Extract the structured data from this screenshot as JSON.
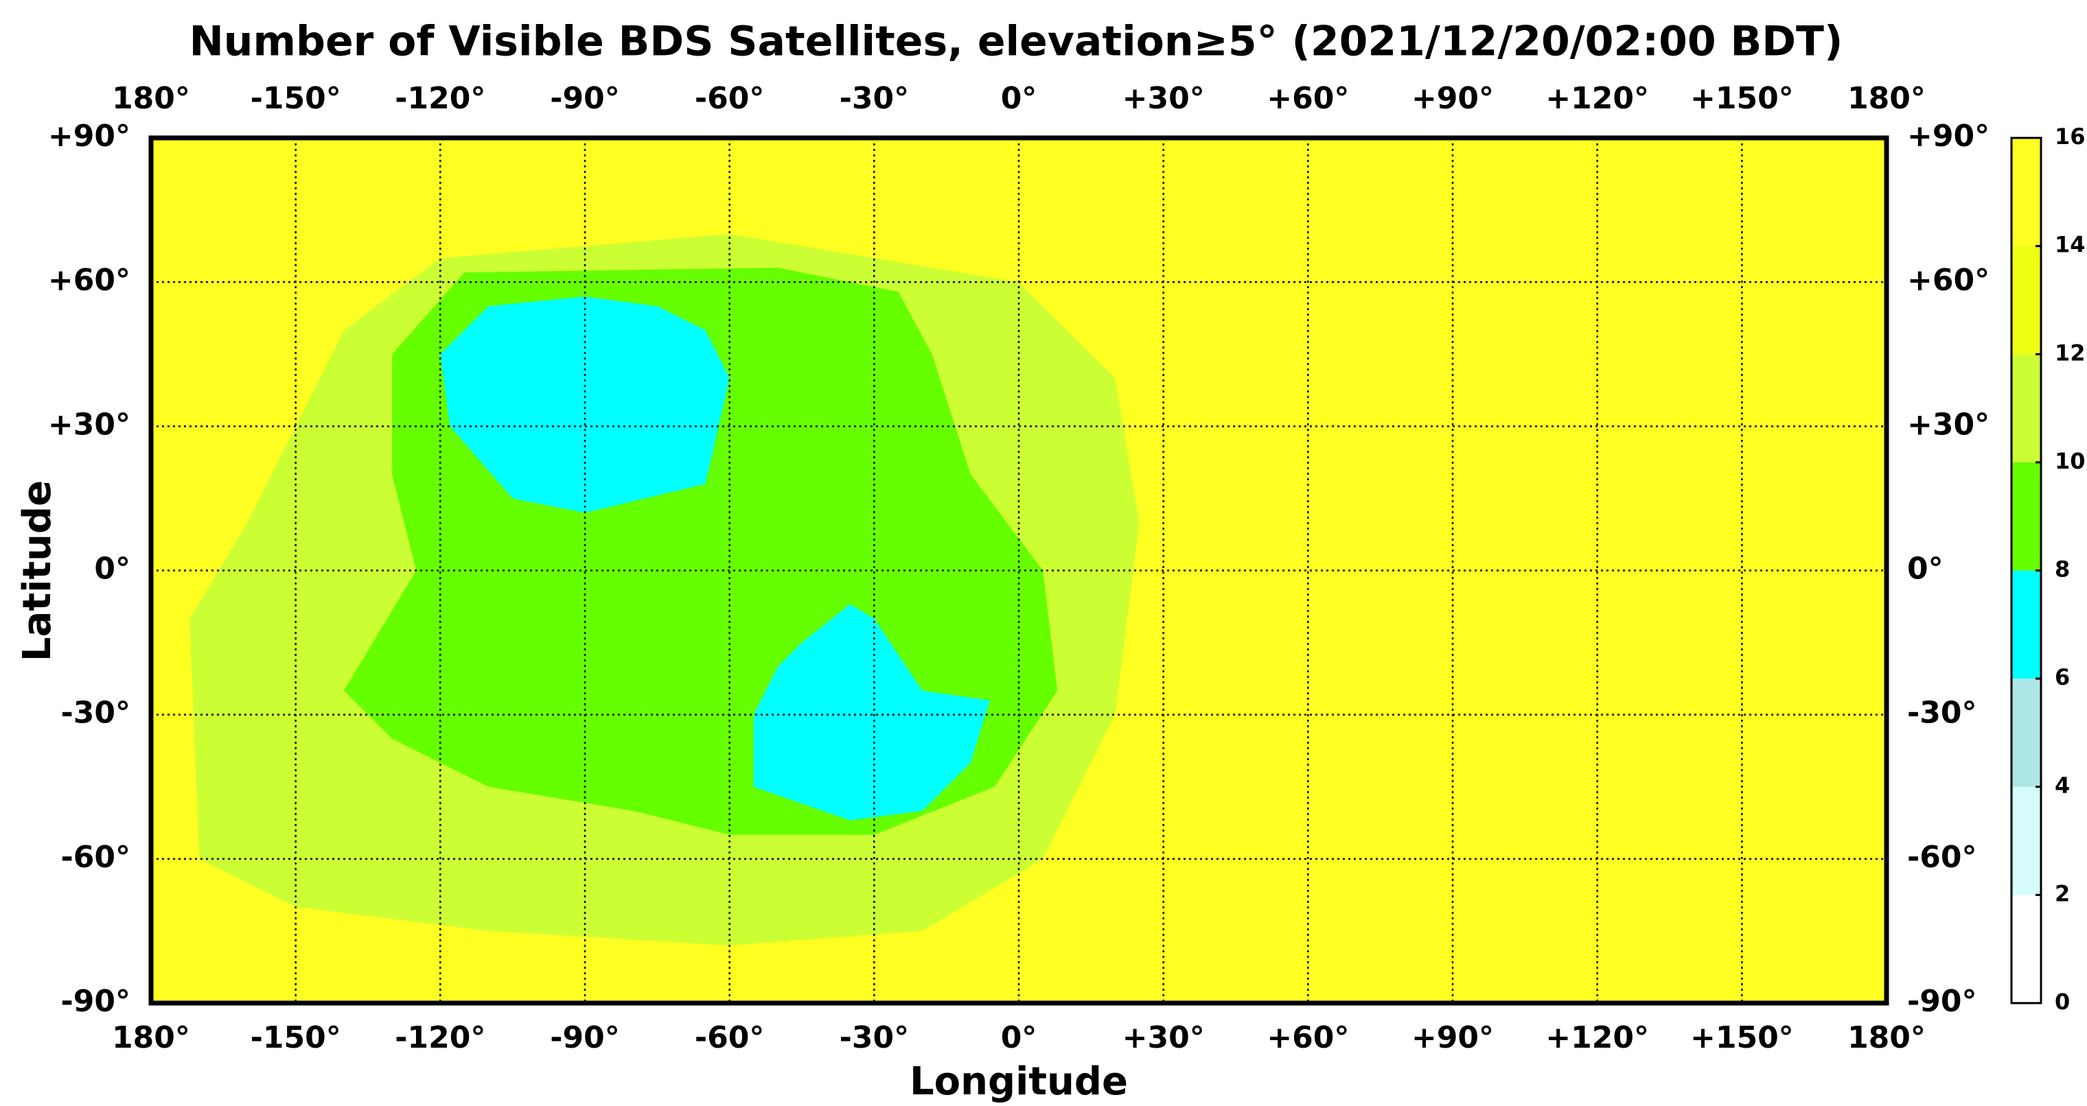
{
  "chart_data": {
    "type": "map",
    "title": "Number of Visible BDS Satellites, elevation≥5° (2021/12/20/02:00 BDT)",
    "x_label": "Longitude",
    "y_label": "Latitude",
    "xlim": [
      -180,
      180
    ],
    "ylim": [
      -90,
      90
    ],
    "xticks": [
      {
        "value": -180,
        "label": "180°"
      },
      {
        "value": -150,
        "label": "-150°"
      },
      {
        "value": -120,
        "label": "-120°"
      },
      {
        "value": -90,
        "label": "-90°"
      },
      {
        "value": -60,
        "label": "-60°"
      },
      {
        "value": -30,
        "label": "-30°"
      },
      {
        "value": 0,
        "label": "0°"
      },
      {
        "value": 30,
        "label": "+30°"
      },
      {
        "value": 60,
        "label": "+60°"
      },
      {
        "value": 90,
        "label": "+90°"
      },
      {
        "value": 120,
        "label": "+120°"
      },
      {
        "value": 150,
        "label": "+150°"
      },
      {
        "value": 180,
        "label": "180°"
      }
    ],
    "yticks": [
      {
        "value": 90,
        "label": "+90°"
      },
      {
        "value": 60,
        "label": "+60°"
      },
      {
        "value": 30,
        "label": "+30°"
      },
      {
        "value": 0,
        "label": "0°"
      },
      {
        "value": -30,
        "label": "-30°"
      },
      {
        "value": -60,
        "label": "-60°"
      },
      {
        "value": -90,
        "label": "-90°"
      }
    ],
    "grid": true,
    "colorbar": {
      "lim": [
        0,
        16
      ],
      "ticks": [
        0,
        2,
        4,
        6,
        8,
        10,
        12,
        14,
        16
      ],
      "colors": [
        "#ffffff",
        "#d6fcfc",
        "#ade6e6",
        "#00ffff",
        "#66ff00",
        "#ccff33",
        "#eeff11",
        "#ffff22"
      ]
    },
    "regions": [
      {
        "value": 15,
        "points": [
          [
            -180,
            -90
          ],
          [
            180,
            -90
          ],
          [
            180,
            90
          ],
          [
            -180,
            90
          ]
        ]
      },
      {
        "value": 11,
        "points": [
          [
            -170,
            -60
          ],
          [
            -172,
            -10
          ],
          [
            -160,
            10
          ],
          [
            -150,
            30
          ],
          [
            -140,
            50
          ],
          [
            -120,
            65
          ],
          [
            -60,
            70
          ],
          [
            -30,
            65
          ],
          [
            0,
            60
          ],
          [
            20,
            40
          ],
          [
            25,
            10
          ],
          [
            20,
            -30
          ],
          [
            5,
            -60
          ],
          [
            -20,
            -75
          ],
          [
            -60,
            -78
          ],
          [
            -110,
            -75
          ],
          [
            -150,
            -70
          ]
        ]
      },
      {
        "value": 9,
        "points": [
          [
            -130,
            45
          ],
          [
            -130,
            20
          ],
          [
            -125,
            0
          ],
          [
            -140,
            -25
          ],
          [
            -130,
            -35
          ],
          [
            -110,
            -45
          ],
          [
            -80,
            -50
          ],
          [
            -60,
            -55
          ],
          [
            -30,
            -55
          ],
          [
            -5,
            -45
          ],
          [
            8,
            -25
          ],
          [
            5,
            0
          ],
          [
            -10,
            20
          ],
          [
            -18,
            45
          ],
          [
            -25,
            58
          ],
          [
            -50,
            63
          ],
          [
            -115,
            62
          ]
        ]
      },
      {
        "value": 7,
        "points": [
          [
            -120,
            45
          ],
          [
            -110,
            55
          ],
          [
            -90,
            57
          ],
          [
            -75,
            55
          ],
          [
            -65,
            50
          ],
          [
            -60,
            40
          ],
          [
            -65,
            18
          ],
          [
            -90,
            12
          ],
          [
            -105,
            15
          ],
          [
            -118,
            30
          ]
        ]
      },
      {
        "value": 7,
        "points": [
          [
            -35,
            -7
          ],
          [
            -30,
            -10
          ],
          [
            -20,
            -25
          ],
          [
            -6,
            -27
          ],
          [
            -10,
            -40
          ],
          [
            -20,
            -50
          ],
          [
            -35,
            -52
          ],
          [
            -55,
            -45
          ],
          [
            -55,
            -30
          ],
          [
            -50,
            -20
          ],
          [
            -45,
            -15
          ]
        ]
      }
    ]
  }
}
